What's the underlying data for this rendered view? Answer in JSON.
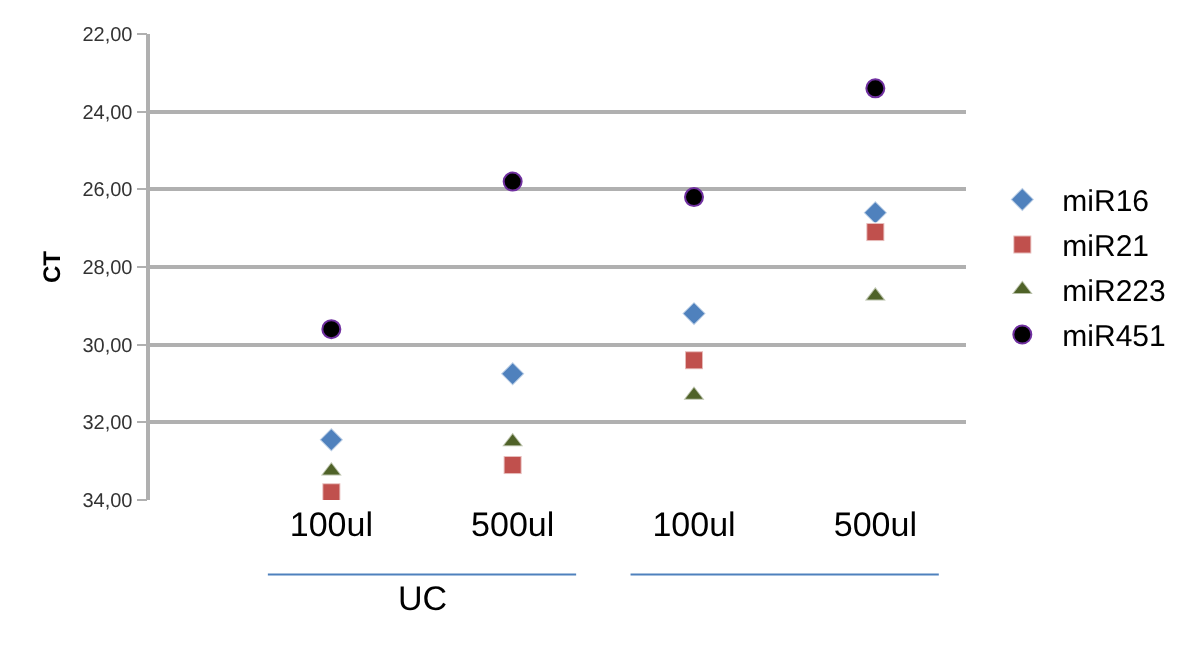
{
  "chart_data": {
    "type": "scatter",
    "ylabel": "CT",
    "categories": [
      "100ul",
      "500ul",
      "100ul",
      "500ul"
    ],
    "annotations": [
      "UC"
    ],
    "series": [
      {
        "name": "miR16",
        "color": "#4f81bd",
        "marker": "diamond",
        "values": [
          32.45,
          30.75,
          29.2,
          26.6
        ]
      },
      {
        "name": "miR21",
        "color": "#c0504d",
        "marker": "square",
        "values": [
          33.8,
          33.1,
          30.4,
          27.1
        ]
      },
      {
        "name": "miR223",
        "color": "#4f6228",
        "marker": "triangle",
        "values": [
          33.25,
          32.5,
          31.3,
          28.75
        ]
      },
      {
        "name": "miR451",
        "color": "#000000",
        "marker": "circle",
        "values": [
          29.6,
          25.8,
          26.2,
          23.4
        ]
      }
    ],
    "ylim": [
      34,
      22
    ],
    "yticks": [
      {
        "value": 22,
        "label": "22,00"
      },
      {
        "value": 24,
        "label": "24,00"
      },
      {
        "value": 26,
        "label": "26,00"
      },
      {
        "value": 28,
        "label": "28,00"
      },
      {
        "value": 30,
        "label": "30,00"
      },
      {
        "value": 32,
        "label": "32,00"
      },
      {
        "value": 34,
        "label": "34,00"
      }
    ],
    "grid": "y",
    "legend": "right"
  }
}
